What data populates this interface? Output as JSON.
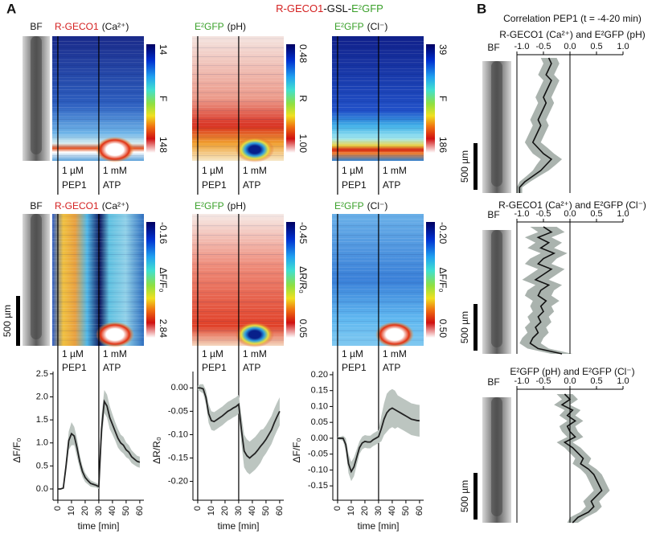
{
  "figure": {
    "panel_labels": [
      "A",
      "B"
    ],
    "title": [
      "R-GECO1",
      "-GSL-",
      "E²GFP"
    ],
    "bf": "BF",
    "scale_bar": "500 µm",
    "columns": [
      {
        "sensor": "R-GECO1",
        "ion": "(Ca²⁺)"
      },
      {
        "sensor": "E²GFP",
        "ion": "(pH)"
      },
      {
        "sensor": "E²GFP",
        "ion": "(Cl⁻)"
      }
    ],
    "treatments": [
      [
        "1 µM",
        "PEP1"
      ],
      [
        "1 mM",
        "ATP"
      ]
    ],
    "colorbars": [
      [
        {
          "top": "14",
          "bottom": "148",
          "label": "F"
        },
        {
          "top": "0.48",
          "bottom": "1.00",
          "label": "R"
        },
        {
          "top": "39",
          "bottom": "186",
          "label": "F"
        }
      ],
      [
        {
          "top": "-0.16",
          "bottom": "2.84",
          "label": "ΔF/F₀"
        },
        {
          "top": "-0.45",
          "bottom": "0.05",
          "label": "ΔR/R₀"
        },
        {
          "top": "-0.20",
          "bottom": "0.50",
          "label": "ΔF/F₀"
        }
      ]
    ],
    "panel_b_title": "Correlation PEP1 (t = -4-20 min)"
  },
  "chart_data": [
    {
      "type": "line",
      "xlabel": "time [min]",
      "ylabel": "ΔF/F₀",
      "color": "#222222",
      "band_color": "#bcc5c0",
      "x": [
        0,
        2,
        4,
        6,
        8,
        10,
        12,
        14,
        16,
        18,
        20,
        22,
        24,
        26,
        28,
        30,
        32,
        34,
        36,
        38,
        40,
        42,
        44,
        46,
        48,
        50,
        52,
        54,
        56,
        58,
        60
      ],
      "values": [
        0,
        0,
        0.02,
        0.5,
        1.05,
        1.2,
        1.15,
        0.9,
        0.6,
        0.38,
        0.25,
        0.18,
        0.12,
        0.1,
        0.08,
        0.05,
        1.3,
        1.9,
        1.8,
        1.55,
        1.4,
        1.25,
        1.1,
        1.0,
        0.95,
        0.85,
        0.8,
        0.7,
        0.65,
        0.6,
        0.58
      ],
      "errors": [
        0,
        0,
        0.02,
        0.15,
        0.2,
        0.25,
        0.2,
        0.2,
        0.15,
        0.12,
        0.1,
        0.08,
        0.07,
        0.06,
        0.05,
        0.05,
        0.3,
        0.25,
        0.25,
        0.25,
        0.22,
        0.2,
        0.2,
        0.18,
        0.18,
        0.16,
        0.15,
        0.14,
        0.13,
        0.12,
        0.12
      ],
      "events": [
        0,
        30
      ],
      "xlim": [
        -3.5,
        63
      ],
      "xticks": [
        0,
        10,
        20,
        30,
        40,
        50,
        60
      ],
      "ylim": [
        -0.14,
        2.55
      ],
      "yticks": [
        {
          "value": 0,
          "label": "0.0"
        },
        0.5,
        {
          "value": 1,
          "label": "1.0"
        },
        1.5,
        {
          "value": 2,
          "label": "2.0"
        },
        2.5
      ]
    },
    {
      "type": "line",
      "xlabel": "time [min]",
      "ylabel": "ΔR/R₀",
      "color": "#222222",
      "band_color": "#bcc5c0",
      "x": [
        0,
        2,
        4,
        6,
        8,
        10,
        12,
        14,
        16,
        18,
        20,
        22,
        24,
        26,
        28,
        30,
        32,
        34,
        36,
        38,
        40,
        42,
        44,
        46,
        48,
        50,
        52,
        54,
        56,
        58,
        60
      ],
      "values": [
        0,
        0,
        -0.002,
        -0.02,
        -0.055,
        -0.07,
        -0.072,
        -0.068,
        -0.064,
        -0.06,
        -0.055,
        -0.05,
        -0.047,
        -0.043,
        -0.04,
        -0.035,
        -0.09,
        -0.135,
        -0.145,
        -0.15,
        -0.145,
        -0.14,
        -0.133,
        -0.125,
        -0.118,
        -0.11,
        -0.1,
        -0.09,
        -0.075,
        -0.062,
        -0.05
      ],
      "errors": [
        0.005,
        0.008,
        0.01,
        0.015,
        0.02,
        0.02,
        0.02,
        0.02,
        0.02,
        0.02,
        0.02,
        0.02,
        0.02,
        0.02,
        0.02,
        0.02,
        0.03,
        0.035,
        0.035,
        0.035,
        0.035,
        0.035,
        0.035,
        0.035,
        0.03,
        0.03,
        0.03,
        0.03,
        0.03,
        0.03,
        0.03
      ],
      "events": [
        0,
        30
      ],
      "xlim": [
        -3.5,
        63
      ],
      "xticks": [
        0,
        10,
        20,
        30,
        40,
        50,
        60
      ],
      "ylim": [
        -0.23,
        0.035
      ],
      "yticks": [
        {
          "value": 0,
          "label": "0.00"
        },
        -0.05,
        {
          "value": -0.1,
          "label": "-0.10"
        },
        -0.15,
        {
          "value": -0.2,
          "label": "-0.20"
        }
      ]
    },
    {
      "type": "line",
      "xlabel": "time [min]",
      "ylabel": "ΔF/F₀",
      "color": "#222222",
      "band_color": "#bcc5c0",
      "x": [
        0,
        2,
        4,
        6,
        8,
        10,
        12,
        14,
        16,
        18,
        20,
        22,
        24,
        26,
        28,
        30,
        32,
        34,
        36,
        38,
        40,
        42,
        44,
        46,
        48,
        50,
        52,
        54,
        56,
        58,
        60
      ],
      "values": [
        0,
        0,
        0,
        -0.02,
        -0.08,
        -0.105,
        -0.09,
        -0.06,
        -0.03,
        -0.015,
        -0.01,
        -0.012,
        -0.012,
        -0.005,
        0,
        0.005,
        0.03,
        0.06,
        0.08,
        0.09,
        0.095,
        0.09,
        0.085,
        0.08,
        0.075,
        0.07,
        0.065,
        0.06,
        0.058,
        0.056,
        0.055
      ],
      "errors": [
        0.005,
        0.005,
        0.008,
        0.02,
        0.03,
        0.03,
        0.03,
        0.025,
        0.02,
        0.02,
        0.02,
        0.02,
        0.02,
        0.02,
        0.02,
        0.02,
        0.04,
        0.05,
        0.06,
        0.06,
        0.06,
        0.06,
        0.05,
        0.05,
        0.05,
        0.05,
        0.05,
        0.05,
        0.05,
        0.05,
        0.05
      ],
      "events": [
        0,
        30
      ],
      "xlim": [
        -3.5,
        63
      ],
      "xticks": [
        0,
        10,
        20,
        30,
        40,
        50,
        60
      ],
      "ylim": [
        -0.18,
        0.21
      ],
      "yticks": [
        {
          "value": 0.2,
          "label": "0.20"
        },
        0.15,
        {
          "value": 0.1,
          "label": "0.10"
        },
        0.05,
        {
          "value": 0,
          "label": "0.00"
        },
        -0.05,
        {
          "value": -0.1,
          "label": "-0.10"
        },
        -0.15
      ]
    },
    {
      "type": "profile",
      "title": "R-GECO1 (Ca²⁺) and E²GFP (pH)",
      "color": "#111111",
      "band_color": "#aab3ae",
      "values": [
        -0.4,
        -0.35,
        -0.4,
        -0.45,
        -0.35,
        -0.4,
        -0.45,
        -0.5,
        -0.45,
        -0.5,
        -0.55,
        -0.6,
        -0.55,
        -0.6,
        -0.65,
        -0.7,
        -0.6,
        -0.5,
        -0.35,
        -0.45,
        -0.55,
        -0.7,
        -0.85,
        -0.95,
        -0.95
      ],
      "errors": [
        0.15,
        0.15,
        0.15,
        0.15,
        0.15,
        0.15,
        0.15,
        0.15,
        0.15,
        0.15,
        0.15,
        0.15,
        0.15,
        0.15,
        0.15,
        0.15,
        0.18,
        0.2,
        0.2,
        0.18,
        0.15,
        0.12,
        0.1,
        0.05,
        0.05
      ],
      "xlim": [
        -1,
        1
      ],
      "xticks": [
        {
          "value": -1,
          "label": "-1.0"
        },
        -0.5,
        {
          "value": 0,
          "label": "0.0"
        },
        0.5,
        {
          "value": 1,
          "label": "1.0"
        }
      ]
    },
    {
      "type": "profile",
      "title": "R-GECO1 (Ca²⁺) and E²GFP (Cl⁻)",
      "color": "#111111",
      "band_color": "#aab3ae",
      "values": [
        -0.5,
        -0.35,
        -0.6,
        -0.4,
        -0.55,
        -0.3,
        -0.5,
        -0.6,
        -0.35,
        -0.5,
        -0.65,
        -0.4,
        -0.55,
        -0.6,
        -0.45,
        -0.55,
        -0.5,
        -0.6,
        -0.55,
        -0.65,
        -0.6,
        -0.7,
        -0.75,
        -0.6,
        -0.15
      ],
      "errors": [
        0.25,
        0.25,
        0.25,
        0.25,
        0.25,
        0.25,
        0.25,
        0.25,
        0.25,
        0.25,
        0.25,
        0.25,
        0.25,
        0.25,
        0.25,
        0.2,
        0.2,
        0.2,
        0.2,
        0.2,
        0.2,
        0.2,
        0.2,
        0.2,
        0.2
      ],
      "xlim": [
        -1,
        1
      ],
      "xticks": [
        {
          "value": -1,
          "label": "-1.0"
        },
        -0.5,
        {
          "value": 0,
          "label": "0.0"
        },
        0.5,
        {
          "value": 1,
          "label": "1.0"
        }
      ]
    },
    {
      "type": "profile",
      "title": "E²GFP (pH) and E²GFP (Cl⁻)",
      "color": "#111111",
      "band_color": "#aab3ae",
      "values": [
        -0.1,
        0,
        -0.15,
        0.05,
        -0.05,
        0.1,
        -0.05,
        0,
        0.1,
        -0.1,
        0.05,
        0.15,
        0.25,
        0.2,
        0.35,
        0.45,
        0.5,
        0.55,
        0.6,
        0.5,
        0.4,
        0.45,
        0.35,
        0.15,
        0.05
      ],
      "errors": [
        0.15,
        0.15,
        0.15,
        0.15,
        0.15,
        0.15,
        0.15,
        0.15,
        0.15,
        0.15,
        0.15,
        0.15,
        0.15,
        0.15,
        0.15,
        0.15,
        0.15,
        0.15,
        0.15,
        0.15,
        0.15,
        0.15,
        0.15,
        0.15,
        0.1
      ],
      "xlim": [
        -1,
        1
      ],
      "xticks": [
        {
          "value": -1,
          "label": "-1.0"
        },
        -0.5,
        {
          "value": 0,
          "label": "0.0"
        },
        0.5,
        {
          "value": 1,
          "label": "1.0"
        }
      ]
    }
  ]
}
